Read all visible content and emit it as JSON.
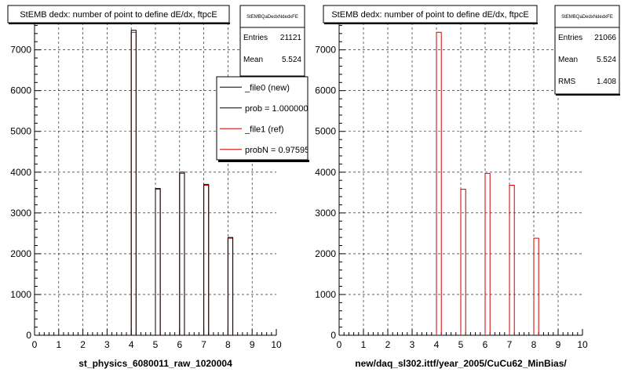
{
  "chart_data": [
    {
      "type": "bar",
      "title": "StEMB dedx: number of point to define dE/dx, ftpcE",
      "xlabel": "st_physics_6080011_raw_1020004",
      "xlim": [
        0,
        10
      ],
      "ylim": [
        0,
        7800
      ],
      "xticks": [
        "0",
        "1",
        "2",
        "3",
        "4",
        "5",
        "6",
        "7",
        "8",
        "9",
        "10"
      ],
      "yticks": [
        "0",
        "1000",
        "2000",
        "3000",
        "4000",
        "5000",
        "6000",
        "7000"
      ],
      "grid": true,
      "bin_width": 0.2,
      "series": [
        {
          "name": "_file0 (new)",
          "color": "#000000",
          "x": [
            4.1,
            5.1,
            6.1,
            7.1,
            8.1
          ],
          "values": [
            7480,
            3600,
            4000,
            3700,
            2400
          ]
        },
        {
          "name": "_file1 (ref)",
          "color": "#cc0000",
          "x": [
            4.1,
            5.1,
            6.1,
            7.1,
            8.1
          ],
          "values": [
            7430,
            3580,
            3970,
            3680,
            2380
          ]
        }
      ],
      "stats": {
        "name": "StEMBQaDedxNdedxFE",
        "entries_label": "Entries",
        "entries": "21121",
        "mean_label": "Mean",
        "mean": "5.524"
      },
      "legend": {
        "placement": "top-right",
        "entries": [
          "_file0 (new)",
          "prob = 1.000000",
          "_file1 (ref)",
          "probN = 0.97595"
        ]
      }
    },
    {
      "type": "bar",
      "title": "StEMB dedx: number of point to define dE/dx, ftpcE",
      "xlabel": "new/daq_sl302.ittf/year_2005/CuCu62_MinBias/",
      "xlim": [
        0,
        10
      ],
      "ylim": [
        0,
        7800
      ],
      "xticks": [
        "0",
        "1",
        "2",
        "3",
        "4",
        "5",
        "6",
        "7",
        "8",
        "9",
        "10"
      ],
      "yticks": [
        "0",
        "1000",
        "2000",
        "3000",
        "4000",
        "5000",
        "6000",
        "7000"
      ],
      "grid": true,
      "bin_width": 0.2,
      "series": [
        {
          "name": "",
          "color": "#cc0000",
          "x": [
            4.1,
            5.1,
            6.1,
            7.1,
            8.1
          ],
          "values": [
            7430,
            3580,
            3970,
            3680,
            2380
          ]
        }
      ],
      "stats": {
        "name": "StEMBQaDedxNdedxFE",
        "entries_label": "Entries",
        "entries": "21066",
        "mean_label": "Mean",
        "mean": "5.524",
        "rms_label": "RMS",
        "rms": "1.408"
      }
    }
  ]
}
